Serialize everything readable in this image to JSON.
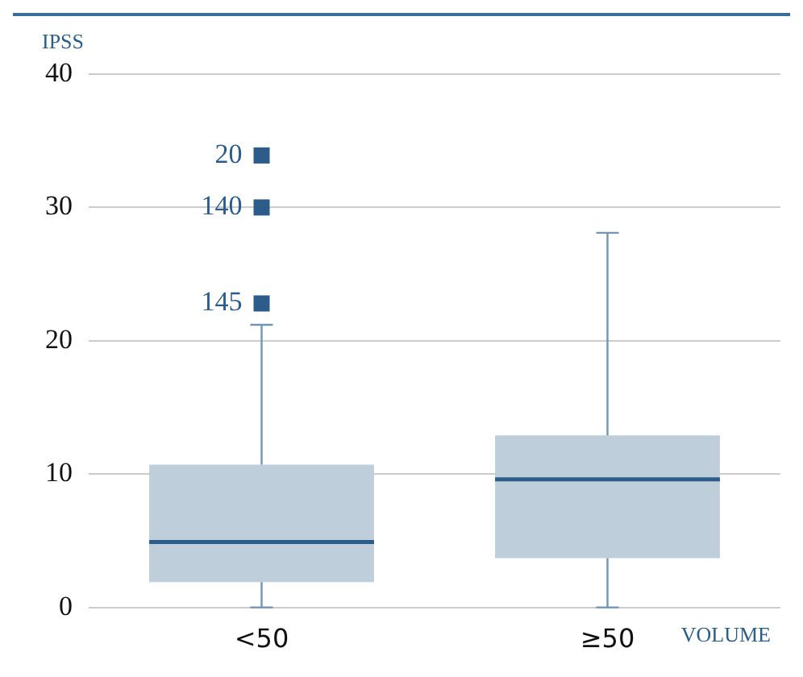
{
  "chart_data": {
    "type": "box",
    "ylabel": "IPSS",
    "xlabel": "VOLUME",
    "categories": [
      "<50",
      "≥50"
    ],
    "series": [
      {
        "color": "#bfcedb",
        "boxes": [
          {
            "low": 0,
            "q1": 1.9,
            "median": 4.9,
            "q3": 10.7,
            "high": 21.2,
            "outliers": [
              33.9,
              30,
              22.8
            ]
          },
          {
            "low": 0,
            "q1": 3.7,
            "median": 9.6,
            "q3": 12.9,
            "high": 28.1
          }
        ]
      }
    ],
    "ylim": [
      0,
      40
    ],
    "yticks": [
      0,
      10,
      20,
      30,
      40
    ],
    "grid": "y",
    "marker": "square",
    "annotations": [
      "20",
      "140",
      "145"
    ]
  }
}
